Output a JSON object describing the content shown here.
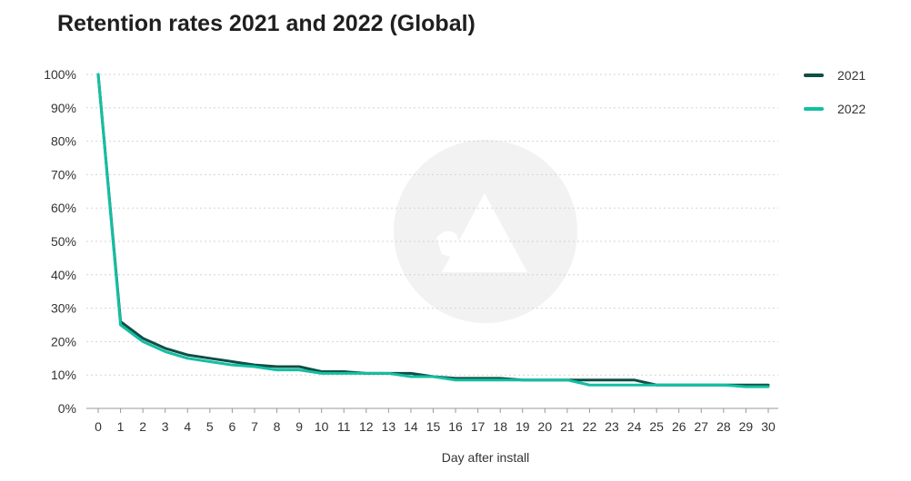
{
  "chart_data": {
    "type": "line",
    "title": "Retention rates 2021 and 2022 (Global)",
    "xlabel": "Day after install",
    "ylabel": "",
    "x": [
      0,
      1,
      2,
      3,
      4,
      5,
      6,
      7,
      8,
      9,
      10,
      11,
      12,
      13,
      14,
      15,
      16,
      17,
      18,
      19,
      20,
      21,
      22,
      23,
      24,
      25,
      26,
      27,
      28,
      29,
      30
    ],
    "ylim": [
      0,
      100
    ],
    "y_ticks": [
      "0%",
      "10%",
      "20%",
      "30%",
      "40%",
      "50%",
      "60%",
      "70%",
      "80%",
      "90%",
      "100%"
    ],
    "grid": true,
    "legend_position": "top-right",
    "series": [
      {
        "name": "2021",
        "color": "#0d4f45",
        "values": [
          100,
          26,
          21,
          18,
          16,
          15,
          14,
          13,
          12.5,
          12.5,
          11,
          11,
          10.5,
          10.5,
          10.5,
          9.5,
          9,
          9,
          9,
          8.5,
          8.5,
          8.5,
          8.5,
          8.5,
          8.5,
          7,
          7,
          7,
          7,
          7,
          7
        ]
      },
      {
        "name": "2022",
        "color": "#13bfa3",
        "values": [
          100,
          25,
          20,
          17,
          15,
          14,
          13,
          12.5,
          11.5,
          11.5,
          10.5,
          10.5,
          10.5,
          10.5,
          9.5,
          9.5,
          8.5,
          8.5,
          8.5,
          8.5,
          8.5,
          8.5,
          7,
          7,
          7,
          7,
          7,
          7,
          7,
          6.5,
          6.5
        ]
      }
    ],
    "colors": {
      "grid": "#d3d3d3",
      "axis": "#9a9a9a",
      "watermark": "#f2f2f2"
    },
    "watermark_icon": "adjust-logo-icon"
  }
}
